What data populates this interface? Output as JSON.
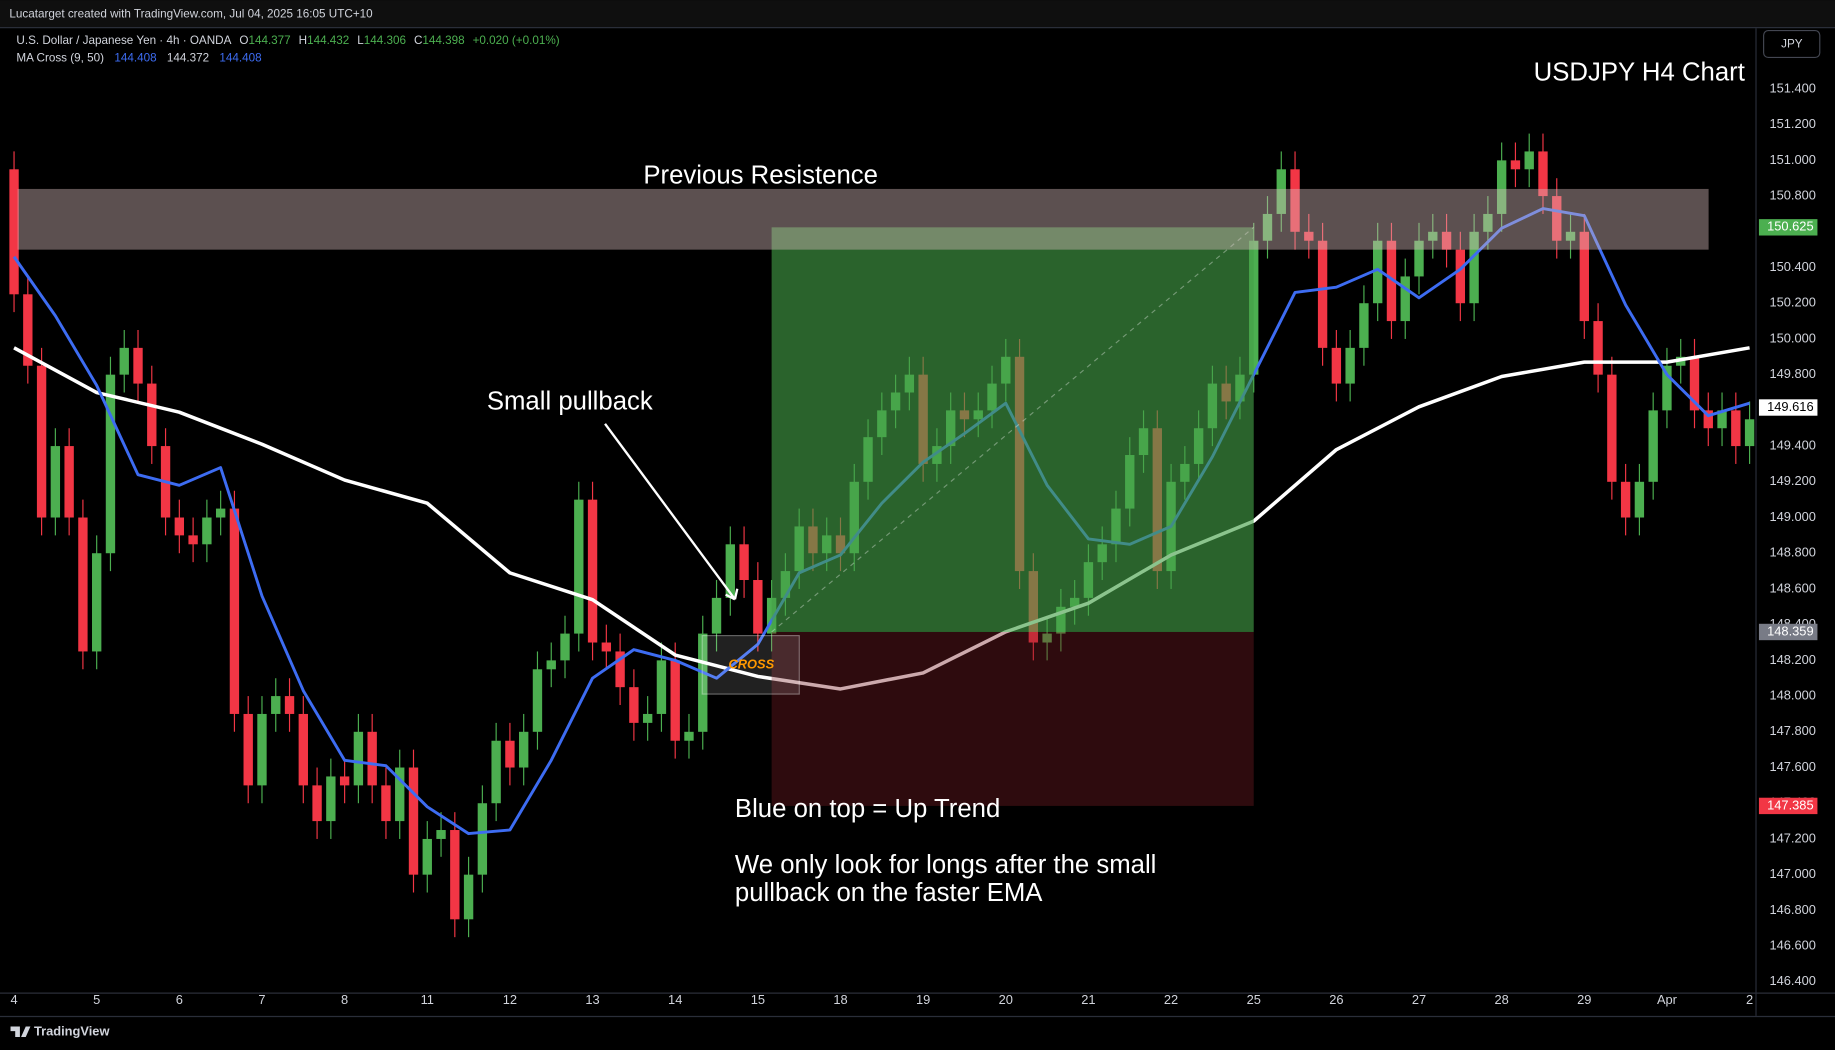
{
  "header": {
    "credit": "Lucatarget created with TradingView.com, Jul 04, 2025 16:05 UTC+10",
    "symbol": "U.S. Dollar / Japanese Yen · 4h · OANDA",
    "ohlc": [
      [
        "O",
        "144.377"
      ],
      [
        "H",
        "144.432"
      ],
      [
        "L",
        "144.306"
      ],
      [
        "C",
        "144.398"
      ]
    ],
    "change": "+0.020 (+0.01%)",
    "indicator": "MA Cross (9, 50)",
    "indicator_values": [
      "144.408",
      "144.372",
      "144.408"
    ],
    "currency": "JPY"
  },
  "footer": {
    "brand": "TradingView"
  },
  "chart_data": {
    "type": "candlestick",
    "title": "USDJPY H4 Chart",
    "annotations": {
      "resistance": "Previous Resistence",
      "pullback": "Small pullback",
      "cross": "CROSS",
      "trend": "Blue on top = Up Trend",
      "note_line1": "We only look for longs after the small",
      "note_line2": "pullback on the faster EMA"
    },
    "categories": [
      "4",
      null,
      null,
      null,
      null,
      null,
      "5",
      null,
      null,
      null,
      null,
      null,
      "6",
      null,
      null,
      null,
      null,
      null,
      "7",
      null,
      null,
      null,
      null,
      null,
      "8",
      null,
      null,
      null,
      null,
      null,
      "11",
      null,
      null,
      null,
      null,
      null,
      "12",
      null,
      null,
      null,
      null,
      null,
      "13",
      null,
      null,
      null,
      null,
      null,
      "14",
      null,
      null,
      null,
      null,
      null,
      "15",
      null,
      null,
      null,
      null,
      null,
      "18",
      null,
      null,
      null,
      null,
      null,
      "19",
      null,
      null,
      null,
      null,
      null,
      "20",
      null,
      null,
      null,
      null,
      null,
      "21",
      null,
      null,
      null,
      null,
      null,
      "22",
      null,
      null,
      null,
      null,
      null,
      "25",
      null,
      null,
      null,
      null,
      null,
      "26",
      null,
      null,
      null,
      null,
      null,
      "27",
      null,
      null,
      null,
      null,
      null,
      "28",
      null,
      null,
      null,
      null,
      null,
      "29",
      null,
      null,
      null,
      null,
      null,
      "Apr",
      null,
      null,
      null,
      null,
      null,
      "2"
    ],
    "open": [
      150.95,
      150.25,
      149.85,
      149.0,
      149.4,
      149.0,
      148.25,
      148.8,
      149.8,
      149.95,
      149.75,
      149.4,
      149.0,
      148.9,
      148.85,
      149.0,
      149.05,
      147.9,
      147.5,
      147.9,
      148.0,
      147.9,
      147.5,
      147.3,
      147.55,
      147.5,
      147.8,
      147.5,
      147.3,
      147.6,
      147.0,
      147.2,
      147.25,
      146.75,
      147.0,
      147.4,
      147.75,
      147.6,
      147.8,
      148.15,
      148.2,
      148.35,
      149.1,
      148.3,
      148.25,
      148.05,
      147.85,
      147.9,
      148.2,
      147.75,
      147.8,
      148.35,
      148.55,
      148.85,
      148.65,
      148.35,
      148.55,
      148.7,
      148.95,
      148.8,
      148.9,
      148.8,
      149.2,
      149.45,
      149.6,
      149.7,
      149.8,
      149.3,
      149.4,
      149.6,
      149.55,
      149.6,
      149.75,
      149.9,
      148.7,
      148.3,
      148.35,
      148.5,
      148.55,
      148.75,
      148.85,
      149.05,
      149.35,
      149.5,
      148.7,
      149.2,
      149.3,
      149.5,
      149.75,
      149.65,
      149.8,
      150.55,
      150.7,
      150.95,
      150.6,
      150.55,
      149.95,
      149.75,
      149.95,
      150.2,
      150.55,
      150.1,
      150.35,
      150.55,
      150.6,
      150.5,
      150.2,
      150.6,
      150.7,
      151.0,
      150.95,
      151.05,
      150.8,
      150.55,
      150.6,
      150.1,
      149.8,
      149.2,
      149.0,
      149.2,
      149.6,
      149.85,
      149.9,
      149.6,
      149.5,
      149.6,
      149.4
    ],
    "high": [
      151.05,
      150.35,
      149.95,
      149.5,
      149.5,
      149.1,
      148.9,
      149.9,
      150.05,
      150.05,
      149.85,
      149.5,
      149.1,
      149.0,
      149.1,
      149.15,
      149.15,
      148.0,
      148.0,
      148.1,
      148.1,
      148.0,
      147.6,
      147.65,
      147.65,
      147.9,
      147.9,
      147.6,
      147.7,
      147.7,
      147.3,
      147.35,
      147.35,
      147.1,
      147.5,
      147.85,
      147.85,
      147.9,
      148.25,
      148.3,
      148.45,
      149.2,
      149.2,
      148.4,
      148.35,
      148.15,
      148.0,
      148.3,
      148.3,
      147.9,
      148.45,
      148.65,
      148.95,
      148.95,
      148.75,
      148.65,
      148.8,
      149.05,
      149.05,
      149.0,
      149.0,
      149.3,
      149.55,
      149.7,
      149.8,
      149.9,
      149.9,
      149.5,
      149.7,
      149.7,
      149.7,
      149.85,
      150.0,
      150.0,
      148.8,
      148.45,
      148.6,
      148.65,
      148.85,
      148.95,
      149.15,
      149.45,
      149.6,
      149.6,
      149.3,
      149.4,
      149.6,
      149.85,
      149.85,
      149.9,
      150.65,
      150.8,
      151.05,
      151.05,
      150.7,
      150.65,
      150.05,
      150.05,
      150.3,
      150.65,
      150.65,
      150.45,
      150.65,
      150.7,
      150.7,
      150.6,
      150.7,
      150.8,
      151.1,
      151.1,
      151.15,
      151.15,
      150.9,
      150.7,
      150.7,
      150.2,
      149.9,
      149.3,
      149.3,
      149.7,
      149.95,
      150.0,
      150.0,
      149.7,
      149.7,
      149.7,
      149.65
    ],
    "low": [
      150.15,
      149.75,
      148.9,
      148.9,
      148.9,
      148.15,
      148.15,
      148.7,
      149.7,
      149.65,
      149.3,
      148.9,
      148.8,
      148.75,
      148.75,
      148.9,
      147.8,
      147.4,
      147.4,
      147.8,
      147.8,
      147.4,
      147.2,
      147.2,
      147.4,
      147.4,
      147.4,
      147.2,
      147.2,
      146.9,
      146.9,
      147.1,
      146.65,
      146.65,
      146.9,
      147.3,
      147.5,
      147.5,
      147.7,
      148.05,
      148.1,
      148.25,
      148.2,
      148.15,
      147.95,
      147.75,
      147.75,
      147.8,
      147.65,
      147.65,
      147.7,
      148.25,
      148.45,
      148.55,
      148.25,
      148.25,
      148.45,
      148.6,
      148.7,
      148.7,
      148.7,
      148.7,
      149.1,
      149.35,
      149.5,
      149.6,
      149.2,
      149.2,
      149.3,
      149.45,
      149.45,
      149.5,
      149.65,
      148.6,
      148.2,
      148.2,
      148.25,
      148.4,
      148.45,
      148.65,
      148.75,
      148.95,
      149.25,
      148.6,
      148.6,
      149.1,
      149.2,
      149.4,
      149.55,
      149.55,
      149.7,
      150.45,
      150.6,
      150.5,
      150.45,
      149.85,
      149.65,
      149.65,
      149.85,
      150.1,
      150.0,
      150.0,
      150.25,
      150.45,
      150.4,
      150.1,
      150.1,
      150.5,
      150.6,
      150.85,
      150.85,
      150.7,
      150.45,
      150.45,
      150.0,
      149.7,
      149.1,
      148.9,
      148.9,
      149.1,
      149.5,
      149.75,
      149.5,
      149.4,
      149.4,
      149.3,
      149.3
    ],
    "close": [
      150.25,
      149.85,
      149.0,
      149.4,
      149.0,
      148.25,
      148.8,
      149.8,
      149.95,
      149.75,
      149.4,
      149.0,
      148.9,
      148.85,
      149.0,
      149.05,
      147.9,
      147.5,
      147.9,
      148.0,
      147.9,
      147.5,
      147.3,
      147.55,
      147.5,
      147.8,
      147.5,
      147.3,
      147.6,
      147.0,
      147.2,
      147.25,
      146.75,
      147.0,
      147.4,
      147.75,
      147.6,
      147.8,
      148.15,
      148.2,
      148.35,
      149.1,
      148.3,
      148.25,
      148.05,
      147.85,
      147.9,
      148.2,
      147.75,
      147.8,
      148.35,
      148.55,
      148.85,
      148.65,
      148.35,
      148.55,
      148.7,
      148.95,
      148.8,
      148.9,
      148.8,
      149.2,
      149.45,
      149.6,
      149.7,
      149.8,
      149.3,
      149.4,
      149.6,
      149.55,
      149.6,
      149.75,
      149.9,
      148.7,
      148.3,
      148.35,
      148.5,
      148.55,
      148.75,
      148.85,
      149.05,
      149.35,
      149.5,
      148.7,
      149.2,
      149.3,
      149.5,
      149.75,
      149.65,
      149.8,
      150.55,
      150.7,
      150.95,
      150.6,
      150.55,
      149.95,
      149.75,
      149.95,
      150.2,
      150.55,
      150.1,
      150.35,
      150.55,
      150.6,
      150.5,
      150.2,
      150.6,
      150.7,
      151.0,
      150.95,
      151.05,
      150.8,
      150.55,
      150.6,
      150.1,
      149.8,
      149.2,
      149.0,
      149.2,
      149.6,
      149.85,
      149.9,
      149.6,
      149.5,
      149.6,
      149.4,
      149.55
    ],
    "up_color": "#4caf50",
    "down_color": "#f23645",
    "lines": [
      {
        "color": "#ffffff",
        "x": [
          0,
          6,
          12,
          18,
          24,
          30,
          36,
          42,
          48,
          54,
          60,
          66,
          72,
          78,
          84,
          90,
          96,
          102,
          108,
          114,
          120,
          126
        ],
        "values": [
          149.95,
          149.7,
          149.59,
          149.41,
          149.21,
          149.08,
          148.69,
          148.54,
          148.23,
          148.11,
          148.04,
          148.13,
          148.36,
          148.52,
          148.79,
          148.98,
          149.38,
          149.62,
          149.79,
          149.87,
          149.87,
          149.95
        ]
      },
      {
        "color": "#3d6cf2",
        "x": [
          0,
          3,
          6,
          9,
          12,
          15,
          18,
          21,
          24,
          27,
          30,
          33,
          36,
          39,
          42,
          45,
          48,
          51,
          54,
          57,
          60,
          63,
          66,
          69,
          72,
          75,
          78,
          81,
          84,
          87,
          90,
          93,
          96,
          99,
          102,
          105,
          108,
          111,
          114,
          117,
          120,
          123,
          126
        ],
        "values": [
          150.46,
          150.13,
          149.74,
          149.24,
          149.18,
          149.28,
          148.56,
          148.03,
          147.64,
          147.61,
          147.38,
          147.23,
          147.25,
          147.64,
          148.1,
          148.26,
          148.2,
          148.1,
          148.29,
          148.69,
          148.79,
          149.08,
          149.31,
          149.47,
          149.64,
          149.18,
          148.88,
          148.85,
          148.95,
          149.34,
          149.8,
          150.26,
          150.29,
          150.39,
          150.23,
          150.39,
          150.62,
          150.73,
          150.69,
          150.19,
          149.8,
          149.57,
          149.64
        ]
      }
    ],
    "resistance_zone": [
      150.5,
      150.84
    ],
    "position": {
      "x": [
        55,
        90
      ],
      "entry": 148.359,
      "target": 150.625,
      "stop": 147.385
    },
    "last_price": 149.616,
    "ylim": [
      146.34,
      151.74
    ],
    "yticks": [
      {
        "value": 146.4,
        "label": "146.400"
      },
      {
        "value": 146.6,
        "label": "146.600"
      },
      {
        "value": 146.8,
        "label": "146.800"
      },
      {
        "value": 147.0,
        "label": "147.000"
      },
      {
        "value": 147.2,
        "label": "147.200"
      },
      {
        "value": 147.4,
        "label": "147.400"
      },
      {
        "value": 147.6,
        "label": "147.600"
      },
      {
        "value": 147.8,
        "label": "147.800"
      },
      {
        "value": 148.0,
        "label": "148.000"
      },
      {
        "value": 148.2,
        "label": "148.200"
      },
      {
        "value": 148.4,
        "label": "148.400"
      },
      {
        "value": 148.6,
        "label": "148.600"
      },
      {
        "value": 148.8,
        "label": "148.800"
      },
      {
        "value": 149.0,
        "label": "149.000"
      },
      {
        "value": 149.2,
        "label": "149.200"
      },
      {
        "value": 149.4,
        "label": "149.400"
      },
      {
        "value": 149.6,
        "label": "149.600"
      },
      {
        "value": 149.8,
        "label": "149.800"
      },
      {
        "value": 150.0,
        "label": "150.000"
      },
      {
        "value": 150.2,
        "label": "150.200"
      },
      {
        "value": 150.4,
        "label": "150.400"
      },
      {
        "value": 150.6,
        "label": "150.600"
      },
      {
        "value": 150.8,
        "label": "150.800"
      },
      {
        "value": 151.0,
        "label": "151.000"
      },
      {
        "value": 151.2,
        "label": "151.200"
      },
      {
        "value": 151.4,
        "label": "151.400"
      }
    ],
    "grid": false
  }
}
